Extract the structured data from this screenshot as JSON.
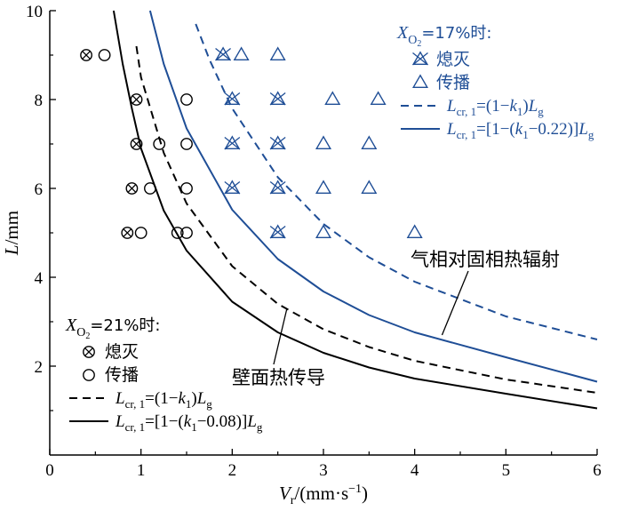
{
  "chart_data": {
    "type": "scatter",
    "xlabel": {
      "main": "V",
      "sub": "r",
      "tail": "/(mm·s",
      "sup": "−1",
      "close": ")"
    },
    "ylabel": {
      "main": "L",
      "tail": "/mm"
    },
    "xlim": [
      0,
      6
    ],
    "ylim": [
      0,
      10
    ],
    "x_ticks": [
      "0",
      "1",
      "2",
      "3",
      "4",
      "5",
      "6"
    ],
    "y_ticks": [
      "2",
      "4",
      "6",
      "8",
      "10"
    ],
    "x_tick_values": [
      0,
      1,
      2,
      3,
      4,
      5,
      6
    ],
    "y_tick_values": [
      2,
      4,
      6,
      8,
      10
    ],
    "colors": {
      "black": "#000000",
      "blue": "#1f4e96"
    },
    "groups": {
      "o17": {
        "title_prefix": "X",
        "title_sub": "O2",
        "title_suffix": "=17%时:",
        "color": "#1f4e96",
        "legend": [
          {
            "label": "熄灭",
            "marker": "x-triangle"
          },
          {
            "label": "传播",
            "marker": "triangle"
          },
          {
            "label": "L_cr,1=(1−k1)Lg",
            "style": "dashed"
          },
          {
            "label": "L_cr,1=[1−(k1−0.22)]Lg",
            "style": "solid"
          }
        ]
      },
      "o21": {
        "title_prefix": "X",
        "title_sub": "O2",
        "title_suffix": "=21%时:",
        "color": "#000000",
        "legend": [
          {
            "label": "熄灭",
            "marker": "x-circle"
          },
          {
            "label": "传播",
            "marker": "circle"
          },
          {
            "label": "L_cr,1=(1−k1)Lg",
            "style": "dashed"
          },
          {
            "label": "L_cr,1=[1−(k1−0.08)]Lg",
            "style": "solid"
          }
        ]
      }
    },
    "scatter_series": [
      {
        "group": "o21",
        "marker": "x-circle",
        "points": [
          [
            0.4,
            9
          ],
          [
            0.95,
            8
          ],
          [
            0.95,
            7
          ],
          [
            0.9,
            6
          ],
          [
            0.85,
            5
          ]
        ]
      },
      {
        "group": "o21",
        "marker": "circle",
        "points": [
          [
            0.6,
            9
          ],
          [
            1.2,
            7
          ],
          [
            1.5,
            7
          ],
          [
            1.1,
            6
          ],
          [
            1.5,
            6
          ],
          [
            1.0,
            5
          ],
          [
            1.4,
            5
          ],
          [
            1.5,
            5
          ],
          [
            1.5,
            8
          ]
        ]
      },
      {
        "group": "o17",
        "marker": "x-triangle",
        "points": [
          [
            1.9,
            9
          ],
          [
            2.0,
            8
          ],
          [
            2.5,
            8
          ],
          [
            2.0,
            7
          ],
          [
            2.5,
            7
          ],
          [
            2.0,
            6
          ],
          [
            2.5,
            6
          ],
          [
            2.5,
            5
          ]
        ]
      },
      {
        "group": "o17",
        "marker": "triangle",
        "points": [
          [
            2.1,
            9
          ],
          [
            2.5,
            9
          ],
          [
            3.1,
            8
          ],
          [
            3.6,
            8
          ],
          [
            3.0,
            7
          ],
          [
            3.5,
            7
          ],
          [
            3.0,
            6
          ],
          [
            3.5,
            6
          ],
          [
            3.0,
            5
          ],
          [
            4.0,
            5
          ]
        ]
      }
    ],
    "curves": [
      {
        "group": "o21",
        "style": "solid",
        "color": "#000000",
        "x": [
          0.7,
          0.8,
          0.9,
          1.0,
          1.25,
          1.5,
          2.0,
          2.5,
          3.0,
          3.5,
          4.0,
          5.0,
          6.0
        ],
        "y": [
          10.0,
          8.8,
          7.8,
          6.9,
          5.5,
          4.6,
          3.45,
          2.76,
          2.3,
          1.97,
          1.72,
          1.38,
          1.05
        ]
      },
      {
        "group": "o21",
        "style": "dashed",
        "color": "#000000",
        "x": [
          0.95,
          1.0,
          1.25,
          1.5,
          2.0,
          2.5,
          3.0,
          3.5,
          4.0,
          5.0,
          6.0
        ],
        "y": [
          9.2,
          8.5,
          6.8,
          5.66,
          4.25,
          3.4,
          2.83,
          2.43,
          2.12,
          1.7,
          1.4
        ]
      },
      {
        "group": "o17",
        "style": "solid",
        "color": "#1f4e96",
        "x": [
          1.1,
          1.25,
          1.5,
          2.0,
          2.5,
          3.0,
          3.5,
          4.0,
          5.0,
          6.0
        ],
        "y": [
          10.0,
          8.8,
          7.35,
          5.52,
          4.41,
          3.68,
          3.15,
          2.76,
          2.2,
          1.65
        ]
      },
      {
        "group": "o17",
        "style": "dashed",
        "color": "#1f4e96",
        "x": [
          1.6,
          1.75,
          2.0,
          2.5,
          3.0,
          3.5,
          4.0,
          5.0,
          6.0
        ],
        "y": [
          9.7,
          8.9,
          7.8,
          6.25,
          5.2,
          4.45,
          3.9,
          3.12,
          2.6
        ]
      }
    ],
    "annotations": [
      {
        "text": "气相对固相热辐射",
        "target": [
          4.3,
          2.7
        ]
      },
      {
        "text": "壁面热传导",
        "target": [
          2.6,
          3.3
        ]
      }
    ]
  }
}
